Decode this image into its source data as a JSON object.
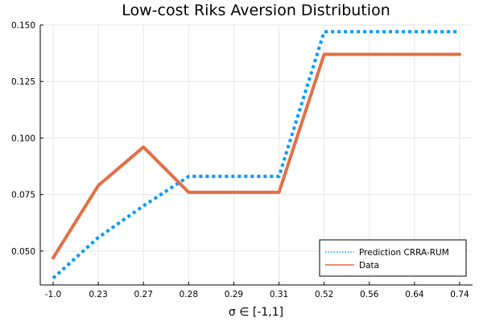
{
  "chart_data": {
    "type": "line",
    "title": "Low-cost Riks Aversion Distribution",
    "xlabel": "σ ∈ [-1,1]",
    "ylabel": "",
    "categories": [
      "-1.0",
      "0.23",
      "0.27",
      "0.28",
      "0.29",
      "0.31",
      "0.52",
      "0.56",
      "0.64",
      "0.74"
    ],
    "ylim": [
      0.035,
      0.15
    ],
    "yticks": [
      0.05,
      0.075,
      0.1,
      0.125,
      0.15
    ],
    "ytick_labels": [
      "0.050",
      "0.075",
      "0.100",
      "0.125",
      "0.150"
    ],
    "grid": true,
    "legend_position": "bottom-right",
    "series": [
      {
        "name": "Prediction CRRA-RUM",
        "style": "dotted",
        "color": "#009AFA",
        "values": [
          0.038,
          0.056,
          0.07,
          0.083,
          0.083,
          0.083,
          0.147,
          0.147,
          0.147,
          0.147
        ]
      },
      {
        "name": "Data",
        "style": "solid",
        "color": "#E26F46",
        "values": [
          0.047,
          0.079,
          0.096,
          0.076,
          0.076,
          0.076,
          0.137,
          0.137,
          0.137,
          0.137
        ]
      }
    ]
  }
}
